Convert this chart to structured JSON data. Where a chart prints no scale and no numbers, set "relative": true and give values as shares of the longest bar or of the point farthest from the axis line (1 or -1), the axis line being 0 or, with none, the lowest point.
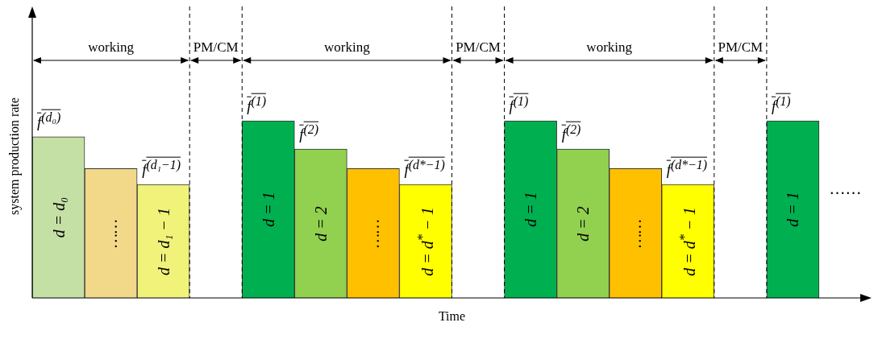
{
  "chart_data": {
    "type": "bar",
    "relative": true,
    "xlabel": "Time",
    "ylabel": "system production rate",
    "tick_labels": false,
    "grid": false,
    "legend": false,
    "categories": [
      "d = d₀",
      "……",
      "d = d₁ − 1",
      null,
      "d = 1",
      "d = 2",
      "……",
      "d = d$^{*}$ − 1",
      null,
      "d = 1",
      "d = 2",
      "……",
      "d = d$^{*}$ − 1",
      null,
      "d = 1",
      null
    ],
    "values": [
      0.91,
      0.73,
      0.64,
      null,
      1,
      0.84,
      0.73,
      0.64,
      null,
      1,
      0.84,
      0.73,
      0.64,
      null,
      1,
      null
    ],
    "colors": [
      "#c5e0a5",
      "#f2d98a",
      "#f0f27a",
      null,
      "#00b050",
      "#92d050",
      "#ffc000",
      "#ffff00",
      null,
      "#00b050",
      "#92d050",
      "#ffc000",
      "#ffff00",
      null,
      "#00b050",
      null
    ],
    "annotations": [
      "working",
      "PM/CM",
      "working",
      "PM/CM",
      "working",
      "PM/CM",
      "……",
      {
        "text": "f$^{(d₀)}$",
        "x": "d = d₀",
        "y": 0.91
      },
      {
        "text": "f$^{(d₁−1)}$",
        "x": "d = d₁ − 1",
        "y": 0.64
      },
      {
        "text": "f$^{(1)}$",
        "x": "d = 1",
        "y": 1
      },
      {
        "text": "f$^{(2)}$",
        "x": "d = 2",
        "y": 0.84
      },
      {
        "text": "f$^{(d*−1)}$",
        "x": "d = d$^{*}$ − 1",
        "y": 0.64
      },
      {
        "text": "f$^{(1)}$",
        "y": 1
      },
      {
        "text": "f$^{(2)}$",
        "y": 0.84
      },
      {
        "text": "f$^{(d*−1)}$",
        "y": 0.64
      },
      {
        "text": "f$^{(1)}$",
        "y": 1
      }
    ]
  }
}
